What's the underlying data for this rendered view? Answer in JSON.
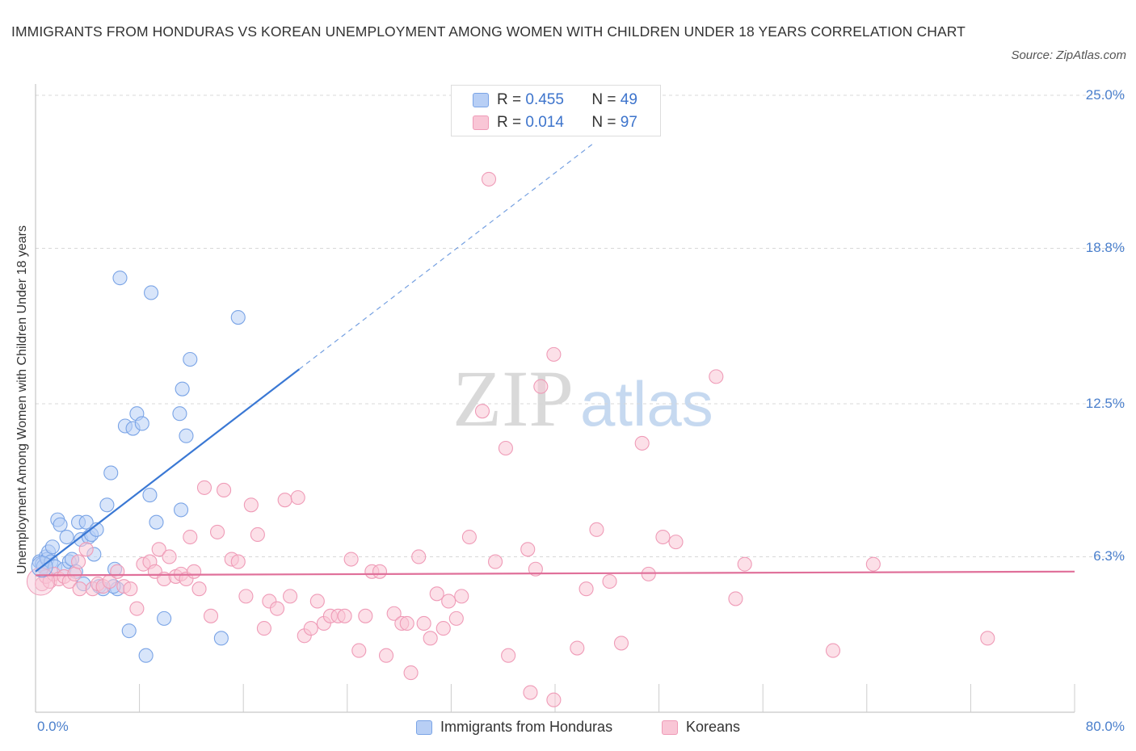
{
  "title": "IMMIGRANTS FROM HONDURAS VS KOREAN UNEMPLOYMENT AMONG WOMEN WITH CHILDREN UNDER 18 YEARS CORRELATION CHART",
  "source": "Source: ZipAtlas.com",
  "watermark": {
    "zip": "ZIP",
    "atlas": "atlas"
  },
  "stats": [
    {
      "r_label": "R =",
      "r_value": "0.455",
      "n_label": "N =",
      "n_value": "49"
    },
    {
      "r_label": "R =",
      "r_value": "0.014",
      "n_label": "N =",
      "n_value": "97"
    }
  ],
  "colors": {
    "blue": "#7aa4e6",
    "blue_fill": "#b8cff5",
    "blue_line": "#3a78d4",
    "pink": "#ef9bb7",
    "pink_fill": "#f9c6d6",
    "pink_line": "#e0709a",
    "tick_text": "#4a7fcc",
    "grid": "#d8d8d8"
  },
  "chart_data": {
    "type": "scatter",
    "title": "IMMIGRANTS FROM HONDURAS VS KOREAN UNEMPLOYMENT AMONG WOMEN WITH CHILDREN UNDER 18 YEARS CORRELATION CHART",
    "xlabel": "",
    "ylabel": "Unemployment Among Women with Children Under 18 years",
    "xlim": [
      0,
      80
    ],
    "ylim": [
      0,
      25
    ],
    "x_tick_labels": [
      "0.0%",
      "80.0%"
    ],
    "y_tick_values": [
      6.3,
      12.5,
      18.8,
      25.0
    ],
    "y_tick_labels": [
      "6.3%",
      "12.5%",
      "18.8%",
      "25.0%"
    ],
    "legend": [
      "Immigrants from Honduras",
      "Koreans"
    ],
    "series": [
      {
        "name": "Immigrants from Honduras",
        "color": "blue",
        "r": 0.455,
        "n": 49,
        "trend": {
          "x0": 0,
          "y0": 5.7,
          "x1": 20.3,
          "y1": 13.9,
          "dashed_to_x": 43
        },
        "points": [
          [
            0.3,
            6.1
          ],
          [
            0.5,
            6.0
          ],
          [
            0.6,
            5.9
          ],
          [
            0.8,
            6.3
          ],
          [
            0.9,
            6.2
          ],
          [
            1.0,
            6.5
          ],
          [
            1.2,
            6.1
          ],
          [
            1.3,
            6.7
          ],
          [
            1.5,
            5.9
          ],
          [
            1.7,
            7.8
          ],
          [
            1.9,
            7.6
          ],
          [
            2.2,
            5.8
          ],
          [
            2.4,
            7.1
          ],
          [
            2.6,
            6.1
          ],
          [
            2.8,
            6.2
          ],
          [
            3.1,
            5.7
          ],
          [
            3.3,
            7.7
          ],
          [
            3.5,
            7.0
          ],
          [
            3.7,
            5.2
          ],
          [
            3.9,
            7.7
          ],
          [
            4.1,
            7.1
          ],
          [
            4.3,
            7.2
          ],
          [
            4.5,
            6.4
          ],
          [
            4.7,
            7.4
          ],
          [
            4.9,
            5.1
          ],
          [
            5.2,
            5.0
          ],
          [
            5.5,
            8.4
          ],
          [
            5.8,
            9.7
          ],
          [
            6.1,
            5.8
          ],
          [
            6.3,
            5.0
          ],
          [
            6.5,
            17.6
          ],
          [
            6.9,
            11.6
          ],
          [
            7.2,
            3.3
          ],
          [
            7.5,
            11.5
          ],
          [
            7.8,
            12.1
          ],
          [
            8.2,
            11.7
          ],
          [
            8.5,
            2.3
          ],
          [
            8.8,
            8.8
          ],
          [
            8.9,
            17.0
          ],
          [
            9.3,
            7.7
          ],
          [
            9.9,
            3.8
          ],
          [
            11.1,
            12.1
          ],
          [
            11.2,
            8.2
          ],
          [
            11.3,
            13.1
          ],
          [
            11.6,
            11.2
          ],
          [
            11.9,
            14.3
          ],
          [
            14.3,
            3.0
          ],
          [
            15.6,
            16.0
          ],
          [
            6.0,
            5.1
          ]
        ]
      },
      {
        "name": "Koreans",
        "color": "pink",
        "r": 0.014,
        "n": 97,
        "trend": {
          "x0": 0,
          "y0": 5.55,
          "x1": 80,
          "y1": 5.7
        },
        "points": [
          [
            0.5,
            5.2
          ],
          [
            0.8,
            5.5
          ],
          [
            1.1,
            5.3
          ],
          [
            1.4,
            5.6
          ],
          [
            1.8,
            5.4
          ],
          [
            2.2,
            5.5
          ],
          [
            2.6,
            5.3
          ],
          [
            3.0,
            5.6
          ],
          [
            3.3,
            6.1
          ],
          [
            3.4,
            5.0
          ],
          [
            3.9,
            6.6
          ],
          [
            4.4,
            5.0
          ],
          [
            4.8,
            5.2
          ],
          [
            5.2,
            5.1
          ],
          [
            5.7,
            5.3
          ],
          [
            6.3,
            5.7
          ],
          [
            6.8,
            5.1
          ],
          [
            7.3,
            5.0
          ],
          [
            7.8,
            4.2
          ],
          [
            8.3,
            6.0
          ],
          [
            8.8,
            6.1
          ],
          [
            9.2,
            5.7
          ],
          [
            9.5,
            6.6
          ],
          [
            9.9,
            5.4
          ],
          [
            10.3,
            6.3
          ],
          [
            10.8,
            5.5
          ],
          [
            11.2,
            5.6
          ],
          [
            11.6,
            5.4
          ],
          [
            11.9,
            7.1
          ],
          [
            12.2,
            5.7
          ],
          [
            12.6,
            5.0
          ],
          [
            13.0,
            9.1
          ],
          [
            13.5,
            3.9
          ],
          [
            14.0,
            7.3
          ],
          [
            14.5,
            9.0
          ],
          [
            15.1,
            6.2
          ],
          [
            15.6,
            6.1
          ],
          [
            16.2,
            4.7
          ],
          [
            16.6,
            8.4
          ],
          [
            17.1,
            7.2
          ],
          [
            17.6,
            3.4
          ],
          [
            18.0,
            4.5
          ],
          [
            18.6,
            4.2
          ],
          [
            19.2,
            8.6
          ],
          [
            19.6,
            4.7
          ],
          [
            20.2,
            8.7
          ],
          [
            20.7,
            3.1
          ],
          [
            21.2,
            3.4
          ],
          [
            21.7,
            4.5
          ],
          [
            22.2,
            3.6
          ],
          [
            22.7,
            3.9
          ],
          [
            23.3,
            3.9
          ],
          [
            23.8,
            3.9
          ],
          [
            24.3,
            6.2
          ],
          [
            24.9,
            2.5
          ],
          [
            25.4,
            3.9
          ],
          [
            25.9,
            5.7
          ],
          [
            26.5,
            5.7
          ],
          [
            27.0,
            2.3
          ],
          [
            27.6,
            4.0
          ],
          [
            28.2,
            3.6
          ],
          [
            28.6,
            3.6
          ],
          [
            28.9,
            1.6
          ],
          [
            29.5,
            6.3
          ],
          [
            29.9,
            3.6
          ],
          [
            30.4,
            3.0
          ],
          [
            30.9,
            4.8
          ],
          [
            31.4,
            3.4
          ],
          [
            31.8,
            4.5
          ],
          [
            32.4,
            3.8
          ],
          [
            32.8,
            4.7
          ],
          [
            33.4,
            7.1
          ],
          [
            34.4,
            12.2
          ],
          [
            34.9,
            21.6
          ],
          [
            35.4,
            6.1
          ],
          [
            36.2,
            10.7
          ],
          [
            36.4,
            2.3
          ],
          [
            37.9,
            6.6
          ],
          [
            38.1,
            0.8
          ],
          [
            38.5,
            5.8
          ],
          [
            38.9,
            13.2
          ],
          [
            39.9,
            0.5
          ],
          [
            39.9,
            14.5
          ],
          [
            41.7,
            2.6
          ],
          [
            42.4,
            5.0
          ],
          [
            43.2,
            7.4
          ],
          [
            44.2,
            5.3
          ],
          [
            45.1,
            2.8
          ],
          [
            46.7,
            10.9
          ],
          [
            47.2,
            5.6
          ],
          [
            48.3,
            7.1
          ],
          [
            49.3,
            6.9
          ],
          [
            52.4,
            13.6
          ],
          [
            53.9,
            4.6
          ],
          [
            54.6,
            6.0
          ],
          [
            61.4,
            2.5
          ],
          [
            64.5,
            6.0
          ],
          [
            73.3,
            3.0
          ]
        ]
      }
    ]
  },
  "legend_items": [
    {
      "label": "Immigrants from Honduras",
      "color": "blue"
    },
    {
      "label": "Koreans",
      "color": "pink"
    }
  ]
}
